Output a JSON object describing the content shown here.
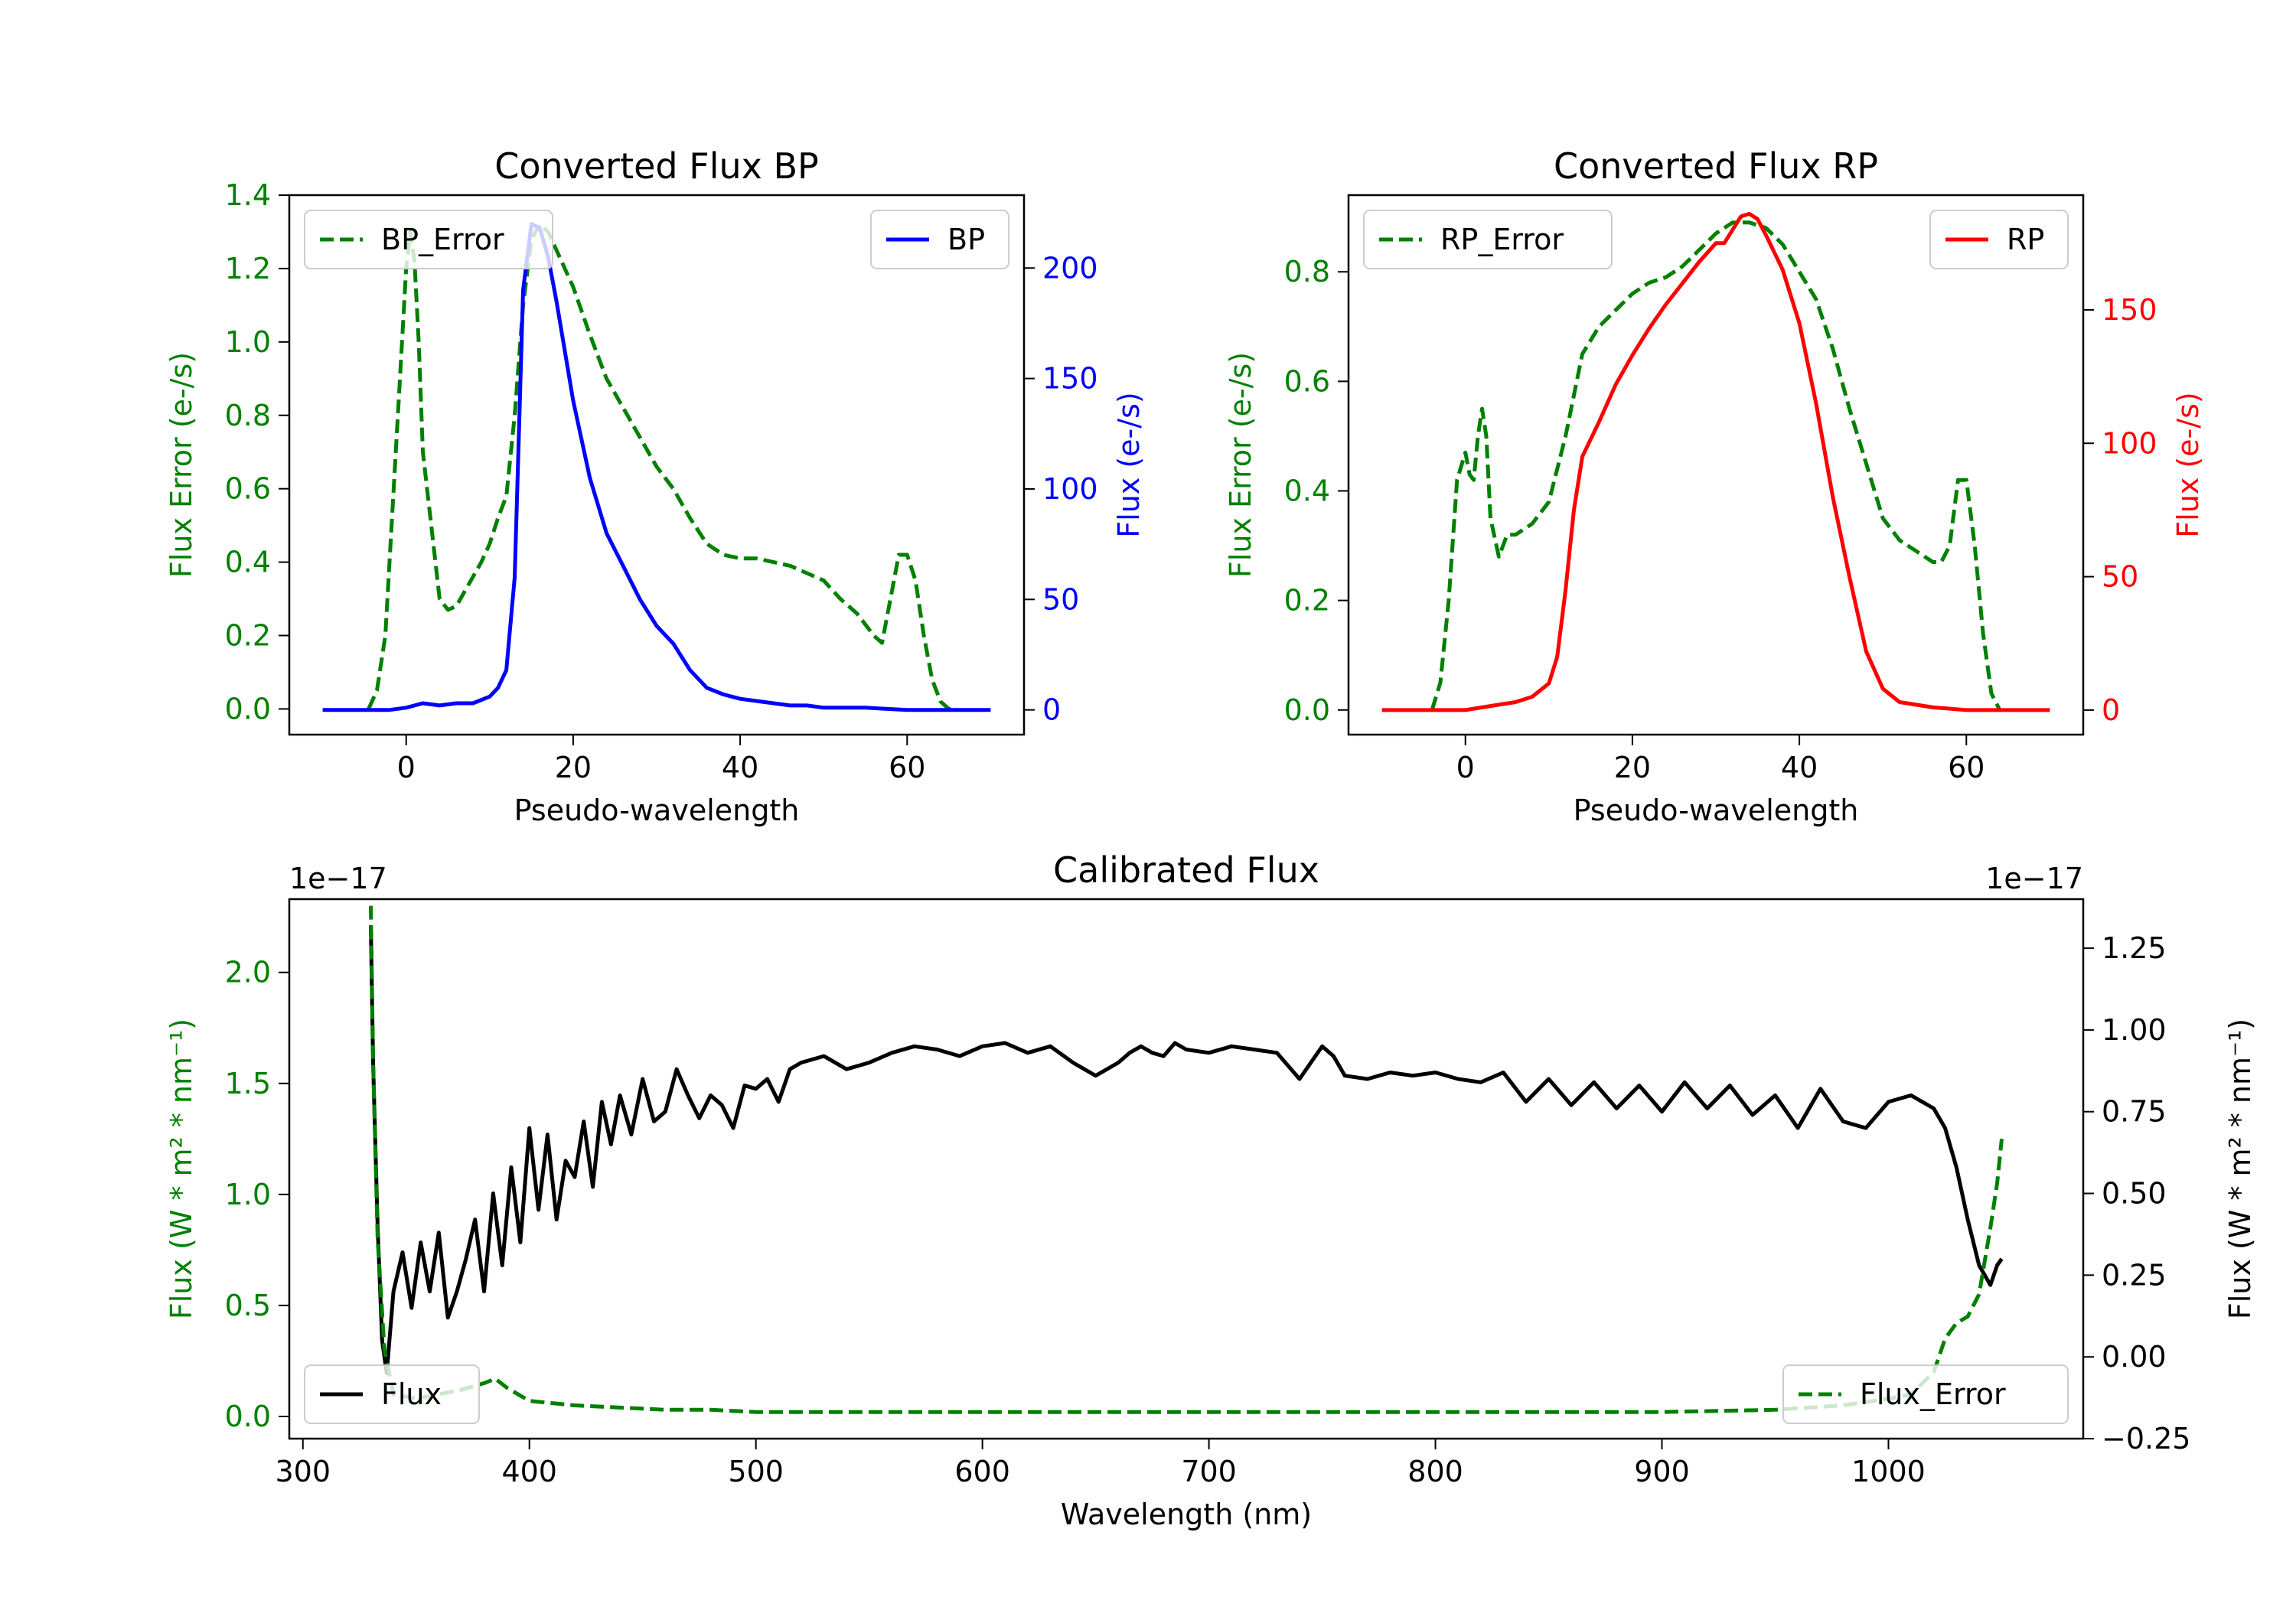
{
  "chart_data": [
    {
      "type": "line",
      "title": "Converted Flux BP",
      "xlabel": "Pseudo-wavelength",
      "ylabel_left": "Flux Error (e-/s)",
      "ylabel_right": "Flux (e-/s)",
      "xlim": [
        -14,
        74
      ],
      "ylim_left": [
        -0.07,
        1.4
      ],
      "ylim_right": [
        -11.2,
        233
      ],
      "x_ticks": [
        0,
        20,
        40,
        60
      ],
      "y_ticks_left": [
        0.0,
        0.2,
        0.4,
        0.6,
        0.8,
        1.0,
        1.2,
        1.4
      ],
      "y_ticks_right": [
        0,
        50,
        100,
        150,
        200
      ],
      "left_color": "#008000",
      "right_color": "#0000ff",
      "series": [
        {
          "name": "BP_Error",
          "axis": "left",
          "color": "#008000",
          "dash": true,
          "legend": "upper left",
          "x": [
            -4.5,
            -3.5,
            -2.5,
            -1.5,
            -0.5,
            0,
            0.5,
            1,
            1.5,
            2,
            3,
            4,
            5,
            6,
            7,
            8,
            9,
            10,
            11,
            12,
            13,
            14,
            15,
            16,
            17,
            18,
            19,
            20,
            22,
            24,
            26,
            28,
            30,
            32,
            34,
            36,
            38,
            40,
            42,
            44,
            46,
            48,
            50,
            52,
            54,
            56,
            57,
            58,
            59,
            60,
            61,
            62,
            63,
            64,
            65,
            66
          ],
          "values": [
            0.0,
            0.05,
            0.2,
            0.6,
            1.0,
            1.2,
            1.3,
            1.22,
            1.0,
            0.7,
            0.5,
            0.3,
            0.27,
            0.28,
            0.32,
            0.36,
            0.4,
            0.45,
            0.52,
            0.58,
            0.8,
            1.1,
            1.28,
            1.32,
            1.3,
            1.25,
            1.2,
            1.15,
            1.02,
            0.9,
            0.82,
            0.74,
            0.66,
            0.6,
            0.52,
            0.45,
            0.42,
            0.41,
            0.41,
            0.4,
            0.39,
            0.37,
            0.35,
            0.3,
            0.26,
            0.2,
            0.18,
            0.3,
            0.42,
            0.42,
            0.35,
            0.2,
            0.08,
            0.02,
            0.0,
            0.0
          ]
        },
        {
          "name": "BP",
          "axis": "right",
          "color": "#0000ff",
          "dash": false,
          "legend": "upper right",
          "x": [
            -10,
            -6,
            -2,
            0,
            2,
            4,
            6,
            8,
            10,
            11,
            12,
            13,
            14,
            15,
            16,
            17,
            18,
            20,
            22,
            24,
            26,
            28,
            30,
            32,
            34,
            36,
            38,
            40,
            42,
            44,
            46,
            48,
            50,
            55,
            60,
            65,
            70
          ],
          "values": [
            0,
            0,
            0,
            1,
            3,
            2,
            3,
            3,
            6,
            10,
            18,
            60,
            190,
            220,
            218,
            205,
            185,
            140,
            105,
            80,
            65,
            50,
            38,
            30,
            18,
            10,
            7,
            5,
            4,
            3,
            2,
            2,
            1,
            1,
            0,
            0,
            0
          ]
        }
      ]
    },
    {
      "type": "line",
      "title": "Converted Flux RP",
      "xlabel": "Pseudo-wavelength",
      "ylabel_left": "Flux Error (e-/s)",
      "ylabel_right": "Flux (e-/s)",
      "xlim": [
        -14,
        74
      ],
      "ylim_left": [
        -0.045,
        0.94
      ],
      "ylim_right": [
        -9.2,
        193
      ],
      "x_ticks": [
        0,
        20,
        40,
        60
      ],
      "y_ticks_left": [
        0.0,
        0.2,
        0.4,
        0.6,
        0.8
      ],
      "y_ticks_right": [
        0,
        50,
        100,
        150
      ],
      "left_color": "#008000",
      "right_color": "#ff0000",
      "series": [
        {
          "name": "RP_Error",
          "axis": "left",
          "color": "#008000",
          "dash": true,
          "legend": "upper left",
          "x": [
            -4,
            -3,
            -2,
            -1,
            0,
            0.5,
            1,
            1.5,
            2,
            2.5,
            3,
            4,
            5,
            6,
            8,
            10,
            12,
            14,
            16,
            18,
            20,
            22,
            24,
            26,
            28,
            30,
            32,
            34,
            36,
            38,
            40,
            42,
            44,
            46,
            48,
            50,
            52,
            54,
            56,
            57,
            58,
            59,
            60,
            61,
            62,
            63,
            64
          ],
          "values": [
            0.0,
            0.05,
            0.2,
            0.42,
            0.47,
            0.43,
            0.42,
            0.5,
            0.55,
            0.5,
            0.35,
            0.28,
            0.32,
            0.32,
            0.34,
            0.38,
            0.5,
            0.65,
            0.7,
            0.73,
            0.76,
            0.78,
            0.79,
            0.81,
            0.84,
            0.87,
            0.89,
            0.89,
            0.88,
            0.85,
            0.8,
            0.75,
            0.66,
            0.55,
            0.45,
            0.35,
            0.31,
            0.29,
            0.27,
            0.27,
            0.3,
            0.42,
            0.42,
            0.3,
            0.14,
            0.03,
            0.0
          ]
        },
        {
          "name": "RP",
          "axis": "right",
          "color": "#ff0000",
          "dash": false,
          "legend": "upper right",
          "x": [
            -10,
            -5,
            0,
            2,
            4,
            6,
            8,
            10,
            11,
            12,
            13,
            14,
            16,
            18,
            20,
            22,
            24,
            26,
            28,
            30,
            31,
            32,
            33,
            34,
            35,
            36,
            38,
            40,
            42,
            44,
            46,
            48,
            50,
            52,
            56,
            60,
            65,
            70
          ],
          "values": [
            0,
            0,
            0,
            1,
            2,
            3,
            5,
            10,
            20,
            45,
            75,
            95,
            108,
            122,
            133,
            143,
            152,
            160,
            168,
            175,
            175,
            180,
            185,
            186,
            184,
            178,
            165,
            145,
            115,
            80,
            50,
            22,
            8,
            3,
            1,
            0,
            0,
            0
          ]
        }
      ]
    },
    {
      "type": "line",
      "title": "Calibrated Flux",
      "xlabel": "Wavelength (nm)",
      "ylabel_left": "Flux (W * m² * nm⁻¹)",
      "ylabel_right": "Flux (W * m² * nm⁻¹)",
      "offset_left": "1e−17",
      "offset_right": "1e−17",
      "xlim": [
        294,
        1086
      ],
      "ylim_left": [
        -0.1,
        2.33
      ],
      "ylim_right": [
        -0.25,
        1.4
      ],
      "x_ticks": [
        300,
        400,
        500,
        600,
        700,
        800,
        900,
        1000
      ],
      "y_ticks_left": [
        0.0,
        0.5,
        1.0,
        1.5,
        2.0
      ],
      "y_ticks_left_labels": [
        "0.0",
        "0.5",
        "1.0",
        "1.5",
        "2.0"
      ],
      "y_ticks_right": [
        -0.25,
        0.0,
        0.25,
        0.5,
        0.75,
        1.0,
        1.25
      ],
      "y_ticks_right_labels": [
        "−0.25",
        "0.00",
        "0.25",
        "0.50",
        "0.75",
        "1.00",
        "1.25"
      ],
      "left_color": "#008000",
      "right_color": "#000000",
      "series": [
        {
          "name": "Flux",
          "axis": "right",
          "color": "#000000",
          "dash": false,
          "legend": "lower left",
          "x": [
            330,
            331,
            333,
            335,
            337,
            340,
            344,
            348,
            352,
            356,
            360,
            364,
            368,
            372,
            376,
            380,
            384,
            388,
            392,
            396,
            400,
            404,
            408,
            412,
            416,
            420,
            424,
            428,
            432,
            436,
            440,
            445,
            450,
            455,
            460,
            465,
            470,
            475,
            480,
            485,
            490,
            495,
            500,
            505,
            510,
            515,
            520,
            530,
            540,
            550,
            560,
            570,
            580,
            590,
            600,
            610,
            620,
            630,
            640,
            645,
            650,
            655,
            660,
            665,
            670,
            675,
            680,
            685,
            690,
            700,
            710,
            720,
            730,
            740,
            745,
            750,
            755,
            760,
            770,
            780,
            790,
            800,
            810,
            820,
            830,
            840,
            850,
            860,
            870,
            880,
            890,
            900,
            910,
            920,
            930,
            940,
            950,
            960,
            970,
            980,
            990,
            1000,
            1010,
            1020,
            1025,
            1030,
            1035,
            1040,
            1045,
            1048,
            1050
          ],
          "values": [
            1.32,
            0.9,
            0.4,
            0.05,
            -0.05,
            0.2,
            0.32,
            0.15,
            0.35,
            0.2,
            0.38,
            0.12,
            0.2,
            0.3,
            0.42,
            0.2,
            0.5,
            0.28,
            0.58,
            0.35,
            0.7,
            0.45,
            0.68,
            0.42,
            0.6,
            0.55,
            0.72,
            0.52,
            0.78,
            0.65,
            0.8,
            0.68,
            0.85,
            0.72,
            0.75,
            0.88,
            0.8,
            0.73,
            0.8,
            0.77,
            0.7,
            0.83,
            0.82,
            0.85,
            0.78,
            0.88,
            0.9,
            0.92,
            0.88,
            0.9,
            0.93,
            0.95,
            0.94,
            0.92,
            0.95,
            0.96,
            0.93,
            0.95,
            0.9,
            0.88,
            0.86,
            0.88,
            0.9,
            0.93,
            0.95,
            0.93,
            0.92,
            0.96,
            0.94,
            0.93,
            0.95,
            0.94,
            0.93,
            0.85,
            0.9,
            0.95,
            0.92,
            0.86,
            0.85,
            0.87,
            0.86,
            0.87,
            0.85,
            0.84,
            0.87,
            0.78,
            0.85,
            0.77,
            0.84,
            0.76,
            0.83,
            0.75,
            0.84,
            0.76,
            0.83,
            0.74,
            0.8,
            0.7,
            0.82,
            0.72,
            0.7,
            0.78,
            0.8,
            0.76,
            0.7,
            0.58,
            0.42,
            0.28,
            0.22,
            0.28,
            0.3
          ]
        },
        {
          "name": "Flux_Error",
          "axis": "left",
          "color": "#008000",
          "dash": true,
          "legend": "lower right",
          "x": [
            330,
            331,
            333,
            336,
            340,
            350,
            360,
            370,
            380,
            385,
            390,
            400,
            420,
            440,
            460,
            480,
            500,
            550,
            600,
            650,
            700,
            750,
            800,
            850,
            900,
            950,
            980,
            1000,
            1010,
            1020,
            1025,
            1030,
            1035,
            1040,
            1045,
            1048,
            1050
          ],
          "values": [
            2.3,
            1.6,
            0.8,
            0.3,
            0.1,
            0.08,
            0.1,
            0.12,
            0.15,
            0.17,
            0.13,
            0.07,
            0.05,
            0.04,
            0.03,
            0.03,
            0.02,
            0.02,
            0.02,
            0.02,
            0.02,
            0.02,
            0.02,
            0.02,
            0.02,
            0.03,
            0.05,
            0.08,
            0.1,
            0.2,
            0.35,
            0.42,
            0.45,
            0.55,
            0.85,
            1.05,
            1.25
          ]
        }
      ]
    }
  ]
}
